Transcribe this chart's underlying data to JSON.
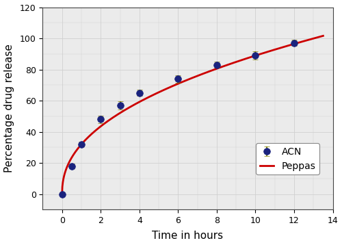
{
  "time_points": [
    0,
    0.5,
    1,
    2,
    3,
    4,
    6,
    8,
    10,
    12
  ],
  "acn_values": [
    0,
    18,
    32,
    48,
    57,
    65,
    74,
    83,
    89,
    97
  ],
  "acn_errors": [
    0.5,
    1.5,
    1.5,
    2.5,
    2.5,
    2.0,
    2.5,
    2.0,
    2.5,
    2.0
  ],
  "marker_color": "#1a237e",
  "marker_edge_color": "#1a237e",
  "line_color": "#cc0000",
  "error_bar_color": "#808000",
  "xlabel": "Time in hours",
  "ylabel": "Percentage drug release",
  "xlim": [
    -1,
    14
  ],
  "ylim": [
    -10,
    120
  ],
  "xticks": [
    0,
    2,
    4,
    6,
    8,
    10,
    12,
    14
  ],
  "yticks": [
    0,
    20,
    40,
    60,
    80,
    100,
    120
  ],
  "legend_labels": [
    "ACN",
    "Peppas"
  ],
  "grid_color": "#d0d0d0",
  "background_color": "#ebebeb",
  "fig_facecolor": "#ffffff",
  "peppas_k": 32.0,
  "peppas_n": 0.444
}
